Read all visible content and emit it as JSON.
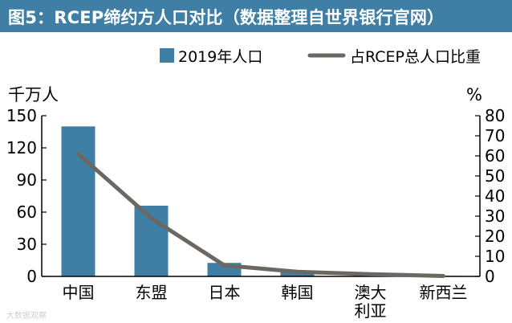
{
  "header": {
    "title": "图5：RCEP缔约方人口对比（数据整理自世界银行官网）"
  },
  "watermark": "大数据观察",
  "colors": {
    "title_bg": "#3f7fa6",
    "bar": "#3f7fa6",
    "line": "#6d6762",
    "axis": "#000000"
  },
  "chart_data": {
    "type": "bar",
    "title": "图5：RCEP缔约方人口对比（数据整理自世界银行官网）",
    "categories": [
      "中国",
      "东盟",
      "日本",
      "韩国",
      "澳大利亚",
      "新西兰"
    ],
    "category_labels": [
      [
        "中国"
      ],
      [
        "东盟"
      ],
      [
        "日本"
      ],
      [
        "韩国"
      ],
      [
        "澳大",
        "利亚"
      ],
      [
        "新西兰"
      ]
    ],
    "series": [
      {
        "name": "2019年人口",
        "type": "bar",
        "axis": "left",
        "values": [
          140,
          66,
          12.6,
          5.2,
          2.5,
          0.5
        ]
      },
      {
        "name": "占RCEP总人口比重",
        "type": "line",
        "axis": "right",
        "values": [
          61,
          29,
          5.5,
          2.3,
          1.1,
          0.2
        ]
      }
    ],
    "y_left": {
      "label": "千万人",
      "ylim": [
        0,
        150
      ],
      "ticks": [
        0,
        30,
        60,
        90,
        120,
        150
      ]
    },
    "y_right": {
      "label": "%",
      "ylim": [
        0,
        80
      ],
      "ticks": [
        0,
        10,
        20,
        30,
        40,
        50,
        60,
        70,
        80
      ]
    },
    "legend": {
      "position": "top-right",
      "entries": [
        "2019年人口",
        "占RCEP总人口比重"
      ]
    },
    "grid": false
  }
}
